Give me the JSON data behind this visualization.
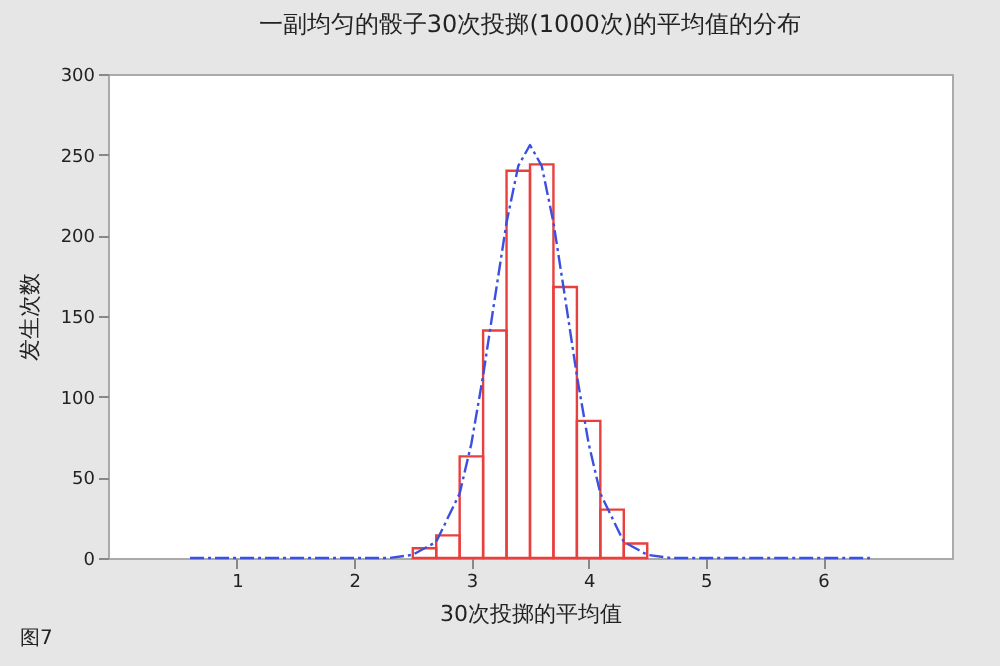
{
  "chart_data": {
    "type": "histogram",
    "title": "一副均匀的骰子30次投掷(1000次)的平均值的分布",
    "xlabel": "30次投掷的平均值",
    "ylabel": "发生次数",
    "annotations": [
      "图7"
    ],
    "xlim": [
      -0.1,
      7.1
    ],
    "xticks": [
      1,
      2,
      3,
      4,
      5,
      6
    ],
    "ylim": [
      0,
      300
    ],
    "yticks": [
      0,
      50,
      100,
      150,
      200,
      250,
      300
    ],
    "series": [
      {
        "color": "#e8403f",
        "bins": [
          2.5,
          2.7,
          2.9,
          3.1,
          3.3,
          3.5,
          3.7,
          3.9,
          4.1,
          4.3,
          4.5
        ],
        "values": [
          6,
          14,
          63,
          141,
          240,
          244,
          168,
          85,
          30,
          9
        ]
      },
      {
        "type": "line",
        "color": "#3b4fe0",
        "line_style": "dashed",
        "marker": "none",
        "x": [
          0.6,
          2.0,
          2.3,
          2.5,
          2.7,
          2.9,
          3.0,
          3.1,
          3.2,
          3.3,
          3.4,
          3.5,
          3.6,
          3.7,
          3.8,
          3.9,
          4.0,
          4.1,
          4.3,
          4.5,
          4.7,
          5.0,
          6.4
        ],
        "values": [
          0,
          0,
          0,
          2,
          10,
          40,
          71,
          113,
          161,
          208,
          243,
          256,
          243,
          208,
          161,
          113,
          71,
          40,
          10,
          2,
          0,
          0,
          0
        ]
      }
    ]
  }
}
